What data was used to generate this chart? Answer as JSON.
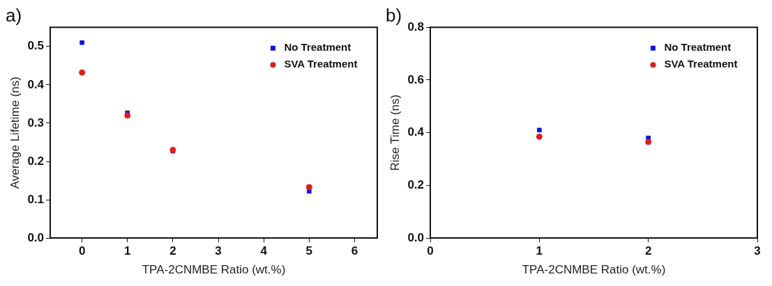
{
  "chart_data": [
    {
      "type": "scatter",
      "title": "a)",
      "xlabel": "TPA-2CNMBE Ratio (wt.%)",
      "ylabel": "Average Lifetime (ns)",
      "xlim": [
        -0.7,
        6.5
      ],
      "xticks": [
        0,
        1,
        2,
        3,
        4,
        5,
        6
      ],
      "ylim": [
        0,
        0.55
      ],
      "yticks": [
        {
          "value": 0,
          "label": "0.0"
        },
        0.1,
        0.2,
        0.3,
        0.4,
        0.5
      ],
      "grid": false,
      "legend": "top right",
      "series": [
        {
          "name": "No Treatment",
          "color": "#1414d8",
          "marker": "square",
          "x": [
            0,
            1,
            2,
            5
          ],
          "values": [
            0.51,
            0.327,
            0.227,
            0.122
          ]
        },
        {
          "name": "SVA Treatment",
          "color": "#e01c1c",
          "marker": "circle",
          "x": [
            0,
            1,
            2,
            5
          ],
          "values": [
            0.432,
            0.32,
            0.23,
            0.133
          ]
        }
      ]
    },
    {
      "type": "scatter",
      "title": "b)",
      "xlabel": "TPA-2CNMBE Ratio (wt.%)",
      "ylabel": "Rise Time (ns)",
      "xlim": [
        0,
        3
      ],
      "xticks": [
        0,
        1,
        2,
        3
      ],
      "ylim": [
        0,
        0.8
      ],
      "yticks": [
        {
          "value": 0,
          "label": "0.0"
        },
        0.2,
        0.4,
        0.6,
        0.8
      ],
      "grid": false,
      "legend": "top right",
      "series": [
        {
          "name": "No Treatment",
          "color": "#1414d8",
          "marker": "square",
          "x": [
            1,
            2
          ],
          "values": [
            0.41,
            0.38
          ]
        },
        {
          "name": "SVA Treatment",
          "color": "#e01c1c",
          "marker": "circle",
          "x": [
            1,
            2
          ],
          "values": [
            0.385,
            0.365
          ]
        }
      ]
    }
  ]
}
